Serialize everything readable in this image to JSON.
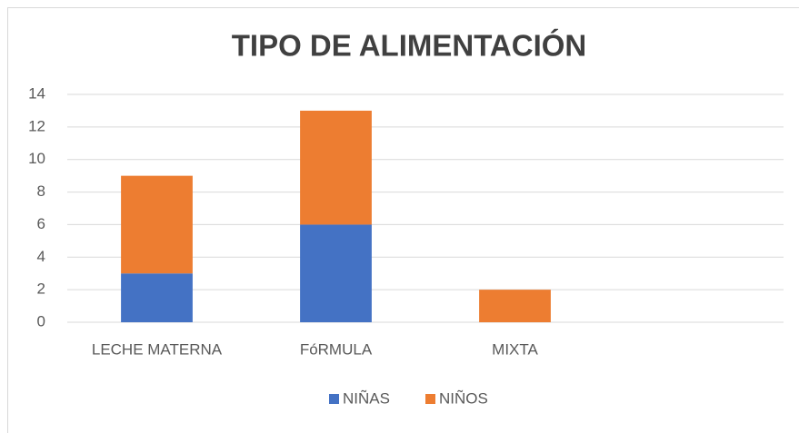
{
  "chart_data": {
    "type": "stacked_bar",
    "title": "TIPO DE ALIMENTACIÓN",
    "categories": [
      "LECHE MATERNA",
      "FóRMULA",
      "MIXTA",
      null
    ],
    "series": [
      {
        "name": "NIÑAS",
        "color": "#4472c4",
        "values": [
          3,
          6,
          0,
          null
        ]
      },
      {
        "name": "NIÑOS",
        "color": "#ed7d31",
        "values": [
          6,
          7,
          2,
          null
        ]
      }
    ],
    "ylim": [
      0,
      14
    ],
    "yticks": [
      0,
      2,
      4,
      6,
      8,
      10,
      12,
      14
    ],
    "grid": true,
    "legend": "bottom"
  }
}
